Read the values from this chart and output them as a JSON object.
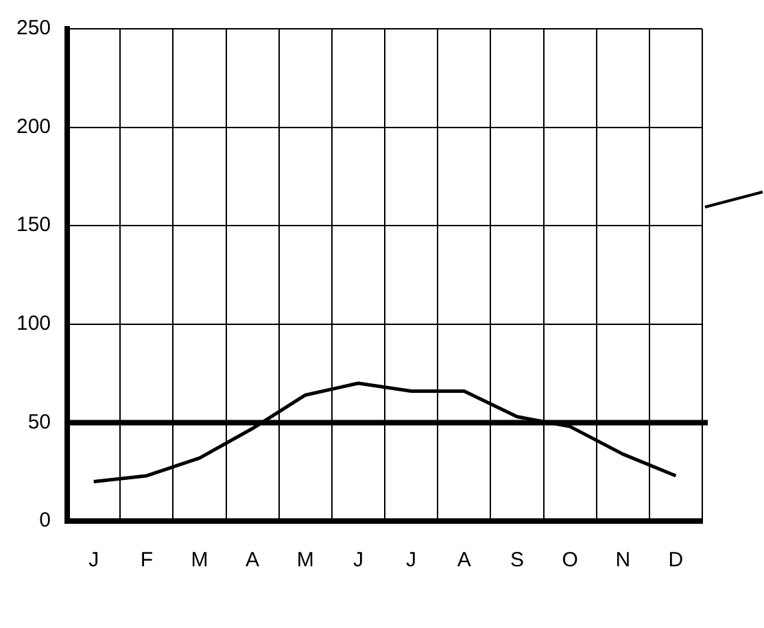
{
  "chart_data": {
    "type": "line",
    "categories": [
      "J",
      "F",
      "M",
      "A",
      "M",
      "J",
      "J",
      "A",
      "S",
      "O",
      "N",
      "D"
    ],
    "series": [
      {
        "color": "#000000",
        "values": [
          20,
          23,
          32,
          47,
          64,
          70,
          66,
          66,
          53,
          48,
          34,
          23
        ]
      }
    ],
    "ylim": [
      0,
      250
    ],
    "yticks": [
      0,
      50,
      100,
      150,
      200,
      250
    ],
    "grid": true,
    "legend": false,
    "marker": "none",
    "line_style": "solid",
    "ref_lines": [
      {
        "axis": "y",
        "value": 50,
        "color": "#000000"
      }
    ]
  }
}
